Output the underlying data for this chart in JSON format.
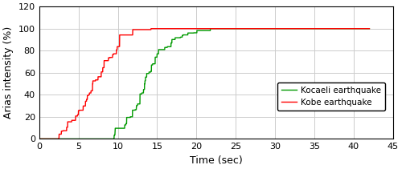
{
  "title": "",
  "xlabel": "Time (sec)",
  "ylabel": "Arias intensity (%)",
  "xlim": [
    0,
    45
  ],
  "ylim": [
    0,
    120
  ],
  "xticks": [
    0,
    5,
    10,
    15,
    20,
    25,
    30,
    35,
    40,
    45
  ],
  "yticks": [
    0,
    20,
    40,
    60,
    80,
    100,
    120
  ],
  "kocaeli_color": "#009900",
  "kobe_color": "#ff0000",
  "legend_kocaeli": "Kocaeli earthquake",
  "legend_kobe": "Kobe earthquake",
  "background_color": "#ffffff",
  "grid_color": "#cccccc",
  "linewidth": 1.0,
  "xlabel_fontsize": 9,
  "ylabel_fontsize": 9,
  "tick_fontsize": 8,
  "legend_fontsize": 7.5
}
